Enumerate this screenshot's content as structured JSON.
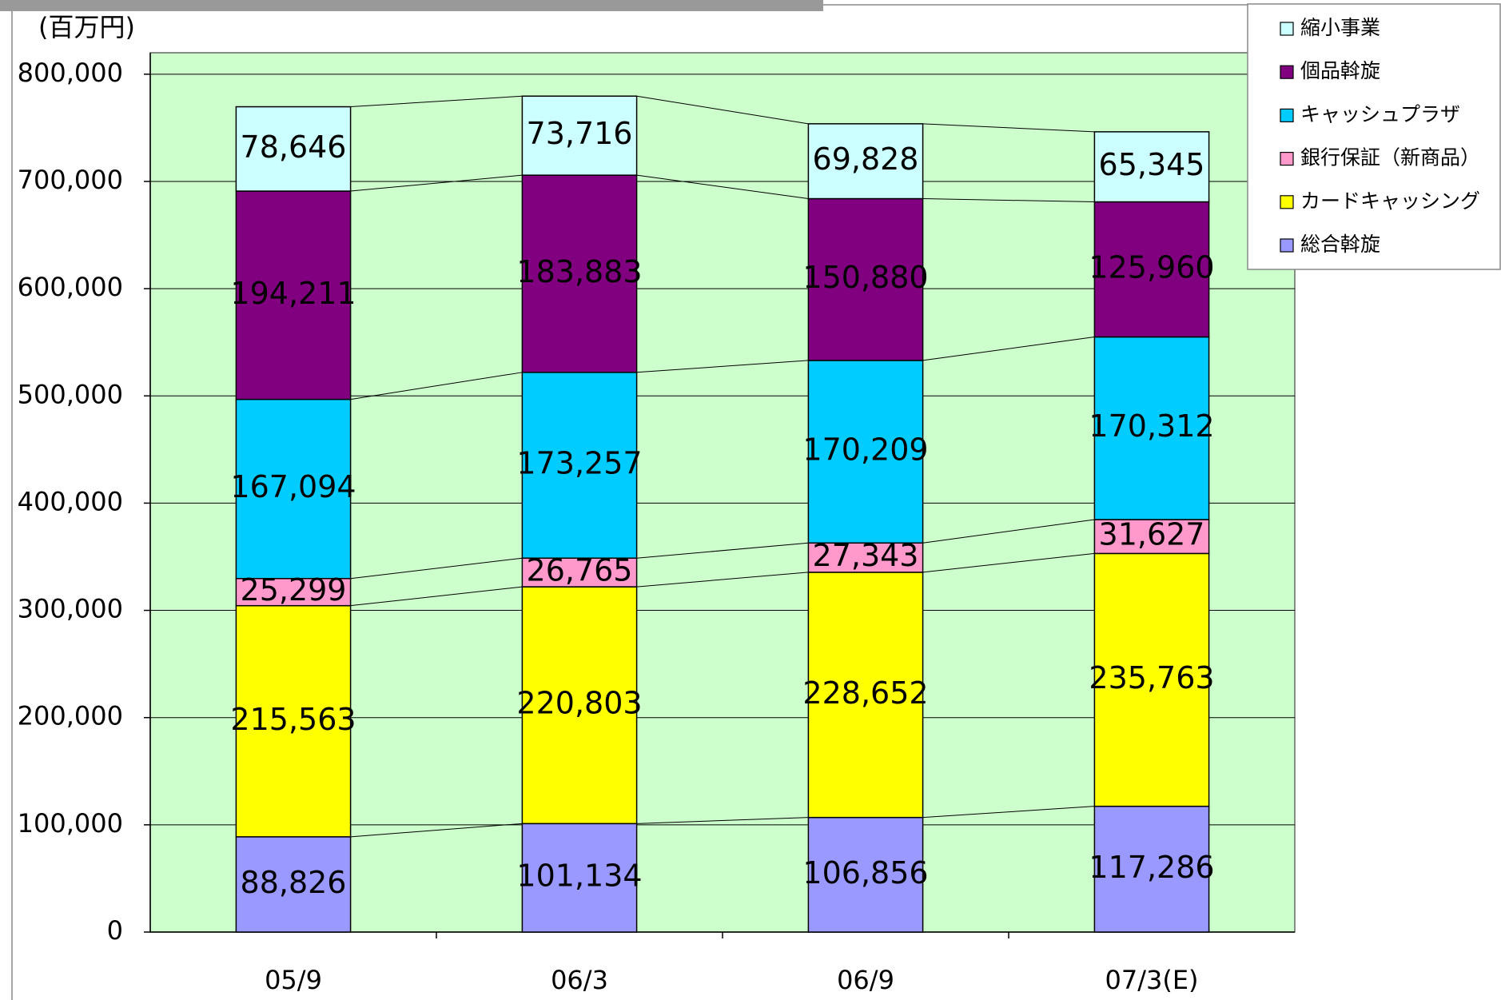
{
  "chart_data": {
    "type": "stacked_bar",
    "y_axis_label": "(百万円)",
    "categories": [
      "05/9",
      "06/3",
      "06/9",
      "07/3(E)"
    ],
    "series": [
      {
        "name": "総合斡旋",
        "color": "#9999ff",
        "values": [
          88826,
          101134,
          106856,
          117286
        ],
        "value_labels": [
          "88,826",
          "101,134",
          "106,856",
          "117,286"
        ]
      },
      {
        "name": "カードキャッシング",
        "color": "#ffff00",
        "values": [
          215563,
          220803,
          228652,
          235763
        ],
        "value_labels": [
          "215,563",
          "220,803",
          "228,652",
          "235,763"
        ]
      },
      {
        "name": "銀行保証（新商品）",
        "color": "#ff99cc",
        "values": [
          25299,
          26765,
          27343,
          31627
        ],
        "value_labels": [
          "25,299",
          "26,765",
          "27,343",
          "31,627"
        ]
      },
      {
        "name": "キャッシュプラザ",
        "color": "#00ccff",
        "values": [
          167094,
          173257,
          170209,
          170312
        ],
        "value_labels": [
          "167,094",
          "173,257",
          "170,209",
          "170,312"
        ]
      },
      {
        "name": "個品斡旋",
        "color": "#800080",
        "values": [
          194211,
          183883,
          150880,
          125960
        ],
        "value_labels": [
          "194,211",
          "183,883",
          "150,880",
          "125,960"
        ]
      },
      {
        "name": "縮小事業",
        "color": "#ccffff",
        "values": [
          78646,
          73716,
          69828,
          65345
        ],
        "value_labels": [
          "78,646",
          "73,716",
          "69,828",
          "65,345"
        ]
      }
    ],
    "ylim": [
      0,
      820000
    ],
    "yticks": [
      0,
      {
        "value": 100000,
        "label": "100,000"
      },
      {
        "value": 200000,
        "label": "200,000"
      },
      {
        "value": 300000,
        "label": "300,000"
      },
      {
        "value": 400000,
        "label": "400,000"
      },
      {
        "value": 500000,
        "label": "500,000"
      },
      {
        "value": 600000,
        "label": "600,000"
      },
      {
        "value": 700000,
        "label": "700,000"
      },
      {
        "value": 800000,
        "label": "800,000"
      }
    ],
    "grid": true,
    "plot_color": "#ccffcc"
  }
}
